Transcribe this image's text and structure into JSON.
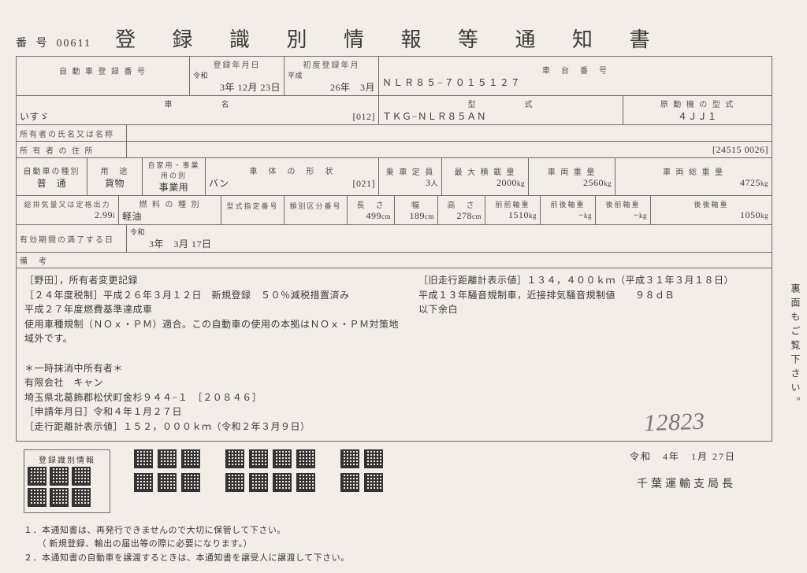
{
  "doc_number_label": "番 号",
  "doc_number": "00611",
  "title": "登 録 識 別 情 報 等 通 知 書",
  "row1": {
    "reg_num_label": "自 動 車 登 録 番 号",
    "reg_num": "",
    "reg_date_label": "登録年月日",
    "reg_date_era": "令和",
    "reg_date": "3年 12月 23日",
    "first_reg_label": "初度登録年月",
    "first_reg_era": "平成",
    "first_reg": "26年　3月",
    "chassis_label": "車　台　番　号",
    "chassis": "ＮＬＲ８５−７０１５１２７"
  },
  "row2": {
    "name_label": "車　　　　　名",
    "name": "いすゞ",
    "name_code": "[012]",
    "model_label": "型　　　　　式",
    "model": "ＴＫＧ−ＮＬＲ８５ＡＮ",
    "engine_label": "原 動 機 の 型 式",
    "engine": "４ＪＪ１"
  },
  "row3": {
    "owner_name_label": "所有者の氏名又は名称",
    "owner_addr_label": "所 有 者 の 住 所",
    "owner_code": "[24515 0026]"
  },
  "row4": {
    "kind_label": "自動車の種別",
    "kind": "普　通",
    "use_label": "用　途",
    "use_sub": "自家用・事業用の別",
    "use": "貨物",
    "use2": "事業用",
    "body_label": "車　体　の　形　状",
    "body": "バン",
    "body_code": "[021]",
    "capacity_label": "乗 車 定 員",
    "capacity": "3",
    "capacity_unit": "人",
    "max_load_label": "最 大 積 載 量",
    "max_load": "2000",
    "max_load_unit": "kg",
    "weight_label": "車 両 重 量",
    "weight": "2560",
    "weight_unit": "kg",
    "gross_label": "車 両 総 重 量",
    "gross": "4725",
    "gross_unit": "kg"
  },
  "row5": {
    "disp_label": "総排気量又は定格出力",
    "disp": "2.99",
    "disp_unit": "l",
    "fuel_label": "燃 料 の 種 別",
    "fuel": "軽油",
    "type_code_label": "型式指定番号",
    "class_code_label": "類別区分番号",
    "length_label": "長　さ",
    "length": "499",
    "width_label": "幅",
    "width": "189",
    "height_label": "高　さ",
    "height": "278",
    "ff_label": "前前軸重",
    "ff": "1510",
    "fr_label": "前後軸重",
    "fr": "−",
    "rf_label": "後前軸重",
    "rf": "−",
    "rr_label": "後後軸重",
    "rr": "1050",
    "cm": "cm",
    "kg": "kg"
  },
  "row6": {
    "expiry_label": "有効期間の満了する日",
    "expiry_era": "令和",
    "expiry": "3年　3月 17日"
  },
  "remarks_label": "備　考",
  "remarks_left": [
    "［野田］，所有者変更記録",
    "［２４年度税制］平成２６年３月１２日　新規登録　５０％減税措置済み",
    "平成２７年度燃費基準達成車",
    "使用車種規制（ＮＯｘ・ＰＭ）適合。この自動車の使用の本拠はＮＯｘ・ＰＭ対策地域外です。",
    "",
    "＊一時抹消中所有者＊",
    "有限会社　キャン",
    "埼玉県北葛飾郡松伏町金杉９４４−１　［２０８４６］",
    "［申請年月日］令和４年１月２７日",
    "［走行距離計表示値］１５２，０００ｋｍ（令和２年３月９日）"
  ],
  "remarks_right": [
    "［旧走行距離計表示値］１３４，４００ｋｍ（平成３１年３月１８日）",
    "平成１３年騒音規制車，近接排気騒音規制値　　９８ｄＢ",
    "以下余白"
  ],
  "handwritten": "12823",
  "qr_title": "登録識別情報",
  "issue_date": "令和　4年　1月 27日",
  "issuer": "千葉運輸支局長",
  "footnotes": [
    "１．本通知書は、再発行できませんので大切に保管して下さい。",
    "　　（ 新規登録、輸出の届出等の際に必要になります。）",
    "２．本通知書の自動車を譲渡するときは、本通知書を譲受人に譲渡して下さい。"
  ],
  "side_note": "裏面もご覧下さい。"
}
